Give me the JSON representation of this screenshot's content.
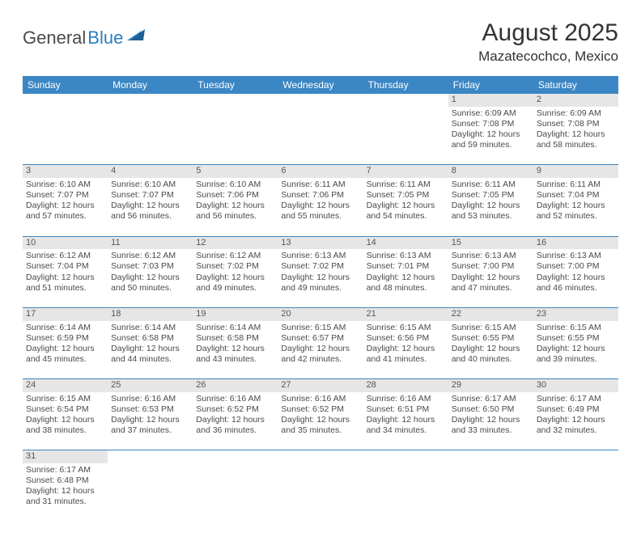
{
  "logo": {
    "part1": "General",
    "part2": "Blue"
  },
  "title": "August 2025",
  "location": "Mazatecochco, Mexico",
  "colors": {
    "header_bg": "#3b86c4",
    "daynum_bg": "#e6e6e6",
    "rule": "#3b86c4"
  },
  "day_headers": [
    "Sunday",
    "Monday",
    "Tuesday",
    "Wednesday",
    "Thursday",
    "Friday",
    "Saturday"
  ],
  "weeks": [
    {
      "nums": [
        "",
        "",
        "",
        "",
        "",
        "1",
        "2"
      ],
      "cells": [
        null,
        null,
        null,
        null,
        null,
        {
          "sr": "Sunrise: 6:09 AM",
          "ss": "Sunset: 7:08 PM",
          "d1": "Daylight: 12 hours",
          "d2": "and 59 minutes."
        },
        {
          "sr": "Sunrise: 6:09 AM",
          "ss": "Sunset: 7:08 PM",
          "d1": "Daylight: 12 hours",
          "d2": "and 58 minutes."
        }
      ]
    },
    {
      "nums": [
        "3",
        "4",
        "5",
        "6",
        "7",
        "8",
        "9"
      ],
      "cells": [
        {
          "sr": "Sunrise: 6:10 AM",
          "ss": "Sunset: 7:07 PM",
          "d1": "Daylight: 12 hours",
          "d2": "and 57 minutes."
        },
        {
          "sr": "Sunrise: 6:10 AM",
          "ss": "Sunset: 7:07 PM",
          "d1": "Daylight: 12 hours",
          "d2": "and 56 minutes."
        },
        {
          "sr": "Sunrise: 6:10 AM",
          "ss": "Sunset: 7:06 PM",
          "d1": "Daylight: 12 hours",
          "d2": "and 56 minutes."
        },
        {
          "sr": "Sunrise: 6:11 AM",
          "ss": "Sunset: 7:06 PM",
          "d1": "Daylight: 12 hours",
          "d2": "and 55 minutes."
        },
        {
          "sr": "Sunrise: 6:11 AM",
          "ss": "Sunset: 7:05 PM",
          "d1": "Daylight: 12 hours",
          "d2": "and 54 minutes."
        },
        {
          "sr": "Sunrise: 6:11 AM",
          "ss": "Sunset: 7:05 PM",
          "d1": "Daylight: 12 hours",
          "d2": "and 53 minutes."
        },
        {
          "sr": "Sunrise: 6:11 AM",
          "ss": "Sunset: 7:04 PM",
          "d1": "Daylight: 12 hours",
          "d2": "and 52 minutes."
        }
      ]
    },
    {
      "nums": [
        "10",
        "11",
        "12",
        "13",
        "14",
        "15",
        "16"
      ],
      "cells": [
        {
          "sr": "Sunrise: 6:12 AM",
          "ss": "Sunset: 7:04 PM",
          "d1": "Daylight: 12 hours",
          "d2": "and 51 minutes."
        },
        {
          "sr": "Sunrise: 6:12 AM",
          "ss": "Sunset: 7:03 PM",
          "d1": "Daylight: 12 hours",
          "d2": "and 50 minutes."
        },
        {
          "sr": "Sunrise: 6:12 AM",
          "ss": "Sunset: 7:02 PM",
          "d1": "Daylight: 12 hours",
          "d2": "and 49 minutes."
        },
        {
          "sr": "Sunrise: 6:13 AM",
          "ss": "Sunset: 7:02 PM",
          "d1": "Daylight: 12 hours",
          "d2": "and 49 minutes."
        },
        {
          "sr": "Sunrise: 6:13 AM",
          "ss": "Sunset: 7:01 PM",
          "d1": "Daylight: 12 hours",
          "d2": "and 48 minutes."
        },
        {
          "sr": "Sunrise: 6:13 AM",
          "ss": "Sunset: 7:00 PM",
          "d1": "Daylight: 12 hours",
          "d2": "and 47 minutes."
        },
        {
          "sr": "Sunrise: 6:13 AM",
          "ss": "Sunset: 7:00 PM",
          "d1": "Daylight: 12 hours",
          "d2": "and 46 minutes."
        }
      ]
    },
    {
      "nums": [
        "17",
        "18",
        "19",
        "20",
        "21",
        "22",
        "23"
      ],
      "cells": [
        {
          "sr": "Sunrise: 6:14 AM",
          "ss": "Sunset: 6:59 PM",
          "d1": "Daylight: 12 hours",
          "d2": "and 45 minutes."
        },
        {
          "sr": "Sunrise: 6:14 AM",
          "ss": "Sunset: 6:58 PM",
          "d1": "Daylight: 12 hours",
          "d2": "and 44 minutes."
        },
        {
          "sr": "Sunrise: 6:14 AM",
          "ss": "Sunset: 6:58 PM",
          "d1": "Daylight: 12 hours",
          "d2": "and 43 minutes."
        },
        {
          "sr": "Sunrise: 6:15 AM",
          "ss": "Sunset: 6:57 PM",
          "d1": "Daylight: 12 hours",
          "d2": "and 42 minutes."
        },
        {
          "sr": "Sunrise: 6:15 AM",
          "ss": "Sunset: 6:56 PM",
          "d1": "Daylight: 12 hours",
          "d2": "and 41 minutes."
        },
        {
          "sr": "Sunrise: 6:15 AM",
          "ss": "Sunset: 6:55 PM",
          "d1": "Daylight: 12 hours",
          "d2": "and 40 minutes."
        },
        {
          "sr": "Sunrise: 6:15 AM",
          "ss": "Sunset: 6:55 PM",
          "d1": "Daylight: 12 hours",
          "d2": "and 39 minutes."
        }
      ]
    },
    {
      "nums": [
        "24",
        "25",
        "26",
        "27",
        "28",
        "29",
        "30"
      ],
      "cells": [
        {
          "sr": "Sunrise: 6:15 AM",
          "ss": "Sunset: 6:54 PM",
          "d1": "Daylight: 12 hours",
          "d2": "and 38 minutes."
        },
        {
          "sr": "Sunrise: 6:16 AM",
          "ss": "Sunset: 6:53 PM",
          "d1": "Daylight: 12 hours",
          "d2": "and 37 minutes."
        },
        {
          "sr": "Sunrise: 6:16 AM",
          "ss": "Sunset: 6:52 PM",
          "d1": "Daylight: 12 hours",
          "d2": "and 36 minutes."
        },
        {
          "sr": "Sunrise: 6:16 AM",
          "ss": "Sunset: 6:52 PM",
          "d1": "Daylight: 12 hours",
          "d2": "and 35 minutes."
        },
        {
          "sr": "Sunrise: 6:16 AM",
          "ss": "Sunset: 6:51 PM",
          "d1": "Daylight: 12 hours",
          "d2": "and 34 minutes."
        },
        {
          "sr": "Sunrise: 6:17 AM",
          "ss": "Sunset: 6:50 PM",
          "d1": "Daylight: 12 hours",
          "d2": "and 33 minutes."
        },
        {
          "sr": "Sunrise: 6:17 AM",
          "ss": "Sunset: 6:49 PM",
          "d1": "Daylight: 12 hours",
          "d2": "and 32 minutes."
        }
      ]
    },
    {
      "nums": [
        "31",
        "",
        "",
        "",
        "",
        "",
        ""
      ],
      "cells": [
        {
          "sr": "Sunrise: 6:17 AM",
          "ss": "Sunset: 6:48 PM",
          "d1": "Daylight: 12 hours",
          "d2": "and 31 minutes."
        },
        null,
        null,
        null,
        null,
        null,
        null
      ]
    }
  ]
}
